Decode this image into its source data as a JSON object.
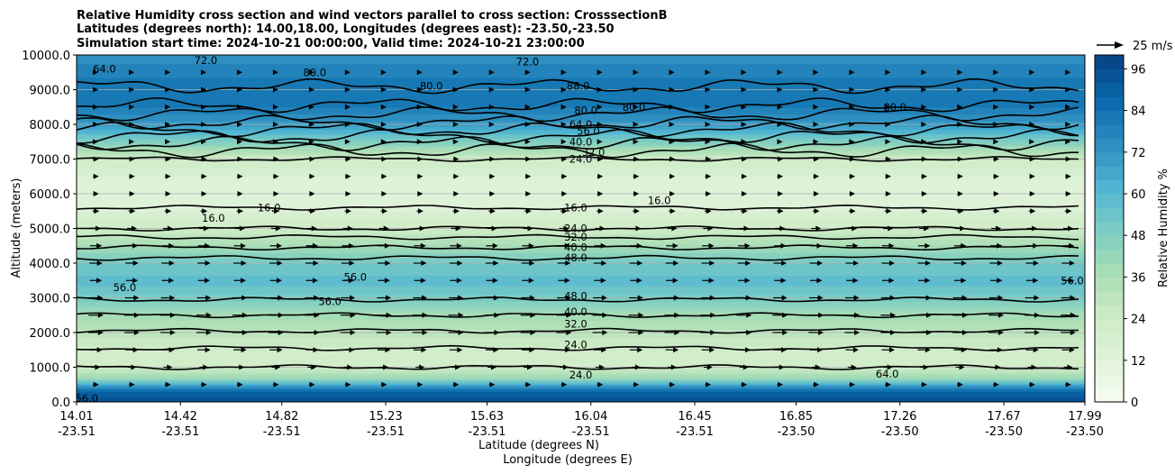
{
  "chart_data": {
    "type": "contour",
    "title_lines": [
      "Relative Humidity cross section and wind vectors parallel to cross section: CrosssectionB",
      "Latitudes (degrees north): 14.00,18.00, Longitudes (degrees east): -23.50,-23.50",
      "Simulation start time: 2024-10-21 00:00:00, Valid time: 2024-10-21 23:00:00"
    ],
    "xlabel_lat": "Latitude (degrees N)",
    "xlabel_lon": "Longitude (degrees E)",
    "ylabel": "Altitude (meters)",
    "x_range_lat": [
      14.01,
      17.99
    ],
    "ylim": [
      0,
      10000
    ],
    "x_ticks": [
      {
        "lat": "14.01",
        "lon": "-23.51"
      },
      {
        "lat": "14.42",
        "lon": "-23.51"
      },
      {
        "lat": "14.82",
        "lon": "-23.51"
      },
      {
        "lat": "15.23",
        "lon": "-23.51"
      },
      {
        "lat": "15.63",
        "lon": "-23.51"
      },
      {
        "lat": "16.04",
        "lon": "-23.51"
      },
      {
        "lat": "16.45",
        "lon": "-23.51"
      },
      {
        "lat": "16.85",
        "lon": "-23.50"
      },
      {
        "lat": "17.26",
        "lon": "-23.50"
      },
      {
        "lat": "17.67",
        "lon": "-23.50"
      },
      {
        "lat": "17.99",
        "lon": "-23.50"
      }
    ],
    "y_ticks": [
      "0.0",
      "1000.0",
      "2000.0",
      "3000.0",
      "4000.0",
      "5000.0",
      "6000.0",
      "7000.0",
      "8000.0",
      "9000.0",
      "10000.0"
    ],
    "grid": "horizontal",
    "colorbar": {
      "label": "Relative Humidity %",
      "ticks": [
        "0",
        "12",
        "24",
        "36",
        "48",
        "60",
        "72",
        "84",
        "96"
      ],
      "range": [
        0,
        100
      ],
      "colormap": [
        "#f7fcf0",
        "#e0f3db",
        "#ccebc5",
        "#a8ddb5",
        "#7bccc4",
        "#4eb3d3",
        "#2b8cbe",
        "#0868ac",
        "#084081"
      ]
    },
    "quiver_key": "25 m/s",
    "rh_profile": [
      {
        "alt": 0,
        "rh": 94
      },
      {
        "alt": 300,
        "rh": 90
      },
      {
        "alt": 700,
        "rh": 40
      },
      {
        "alt": 1000,
        "rh": 24
      },
      {
        "alt": 1500,
        "rh": 22
      },
      {
        "alt": 2000,
        "rh": 30
      },
      {
        "alt": 2500,
        "rh": 38
      },
      {
        "alt": 3000,
        "rh": 50
      },
      {
        "alt": 3500,
        "rh": 58
      },
      {
        "alt": 4000,
        "rh": 52
      },
      {
        "alt": 4500,
        "rh": 38
      },
      {
        "alt": 5000,
        "rh": 24
      },
      {
        "alt": 5500,
        "rh": 16
      },
      {
        "alt": 6000,
        "rh": 14
      },
      {
        "alt": 6500,
        "rh": 16
      },
      {
        "alt": 7000,
        "rh": 24
      },
      {
        "alt": 7500,
        "rh": 48
      },
      {
        "alt": 8000,
        "rh": 70
      },
      {
        "alt": 8500,
        "rh": 80
      },
      {
        "alt": 9000,
        "rh": 84
      },
      {
        "alt": 9500,
        "rh": 78
      },
      {
        "alt": 10000,
        "rh": 74
      }
    ],
    "contours": [
      {
        "level": 24.0,
        "alt": 1000
      },
      {
        "level": 24.0,
        "alt": 1550
      },
      {
        "level": 32.0,
        "alt": 2050
      },
      {
        "level": 40.0,
        "alt": 2500
      },
      {
        "level": 48.0,
        "alt": 2950
      },
      {
        "level": 48.0,
        "alt": 4150
      },
      {
        "level": 40.0,
        "alt": 4450
      },
      {
        "level": 32.0,
        "alt": 4750
      },
      {
        "level": 24.0,
        "alt": 5000
      },
      {
        "level": 16.0,
        "alt": 5600
      },
      {
        "level": 24.0,
        "alt": 7000
      },
      {
        "level": 32.0,
        "alt": 7250
      },
      {
        "level": 40.0,
        "alt": 7450
      },
      {
        "level": 48.0,
        "alt": 7650
      },
      {
        "level": 56.0,
        "alt": 7850
      },
      {
        "level": 64.0,
        "alt": 8050
      },
      {
        "level": 72.0,
        "alt": 8300
      },
      {
        "level": 80.0,
        "alt": 8550
      },
      {
        "level": 88.0,
        "alt": 9100
      }
    ],
    "contour_labels": [
      {
        "text": "24.0",
        "lat": 16.0,
        "alt": 7000
      },
      {
        "text": "32.0",
        "lat": 16.05,
        "alt": 7200
      },
      {
        "text": "40.0",
        "lat": 16.0,
        "alt": 7500
      },
      {
        "text": "56.0",
        "lat": 16.03,
        "alt": 7800
      },
      {
        "text": "64.0",
        "lat": 16.0,
        "alt": 8000
      },
      {
        "text": "80.0",
        "lat": 16.02,
        "alt": 8400
      },
      {
        "text": "88.0",
        "lat": 15.99,
        "alt": 9100
      },
      {
        "text": "16.0",
        "lat": 15.98,
        "alt": 5600
      },
      {
        "text": "24.0",
        "lat": 15.98,
        "alt": 5000
      },
      {
        "text": "32.0",
        "lat": 15.98,
        "alt": 4750
      },
      {
        "text": "40.0",
        "lat": 15.98,
        "alt": 4450
      },
      {
        "text": "48.0",
        "lat": 15.98,
        "alt": 4150
      },
      {
        "text": "48.0",
        "lat": 15.98,
        "alt": 3050
      },
      {
        "text": "40.0",
        "lat": 15.98,
        "alt": 2600
      },
      {
        "text": "32.0",
        "lat": 15.98,
        "alt": 2250
      },
      {
        "text": "24.0",
        "lat": 15.98,
        "alt": 1650
      },
      {
        "text": "24.0",
        "lat": 16.0,
        "alt": 780
      },
      {
        "text": "56.0",
        "lat": 14.2,
        "alt": 3300
      },
      {
        "text": "56.0",
        "lat": 15.11,
        "alt": 3600
      },
      {
        "text": "56.0",
        "lat": 15.01,
        "alt": 2900
      },
      {
        "text": "56.0",
        "lat": 17.94,
        "alt": 3500
      },
      {
        "text": "16.0",
        "lat": 14.55,
        "alt": 5300
      },
      {
        "text": "16.0",
        "lat": 14.77,
        "alt": 5600
      },
      {
        "text": "16.0",
        "lat": 16.31,
        "alt": 5800
      },
      {
        "text": "72.0",
        "lat": 14.52,
        "alt": 9850
      },
      {
        "text": "80.0",
        "lat": 14.95,
        "alt": 9500
      },
      {
        "text": "80.0",
        "lat": 15.41,
        "alt": 9100
      },
      {
        "text": "80.0",
        "lat": 16.21,
        "alt": 8500
      },
      {
        "text": "80.0",
        "lat": 17.24,
        "alt": 8500
      },
      {
        "text": "64.0",
        "lat": 14.12,
        "alt": 9600
      },
      {
        "text": "72.0",
        "lat": 15.79,
        "alt": 9800
      },
      {
        "text": "64.0",
        "lat": 17.21,
        "alt": 800
      },
      {
        "text": "56.0",
        "lat": 14.05,
        "alt": 100
      }
    ],
    "wind_profile": [
      {
        "alt": 500,
        "u": 3
      },
      {
        "alt": 1000,
        "u": 6
      },
      {
        "alt": 1500,
        "u": 10
      },
      {
        "alt": 2000,
        "u": 12
      },
      {
        "alt": 2500,
        "u": 12
      },
      {
        "alt": 3000,
        "u": 11
      },
      {
        "alt": 3500,
        "u": 9
      },
      {
        "alt": 4000,
        "u": 10
      },
      {
        "alt": 4500,
        "u": 9
      },
      {
        "alt": 5000,
        "u": 7
      },
      {
        "alt": 5500,
        "u": 4
      },
      {
        "alt": 6000,
        "u": 3
      },
      {
        "alt": 6500,
        "u": 3
      },
      {
        "alt": 7000,
        "u": 3
      },
      {
        "alt": 7500,
        "u": 2
      },
      {
        "alt": 8000,
        "u": 2
      },
      {
        "alt": 8500,
        "u": 2
      },
      {
        "alt": 9000,
        "u": 2
      },
      {
        "alt": 9500,
        "u": 2
      }
    ]
  }
}
